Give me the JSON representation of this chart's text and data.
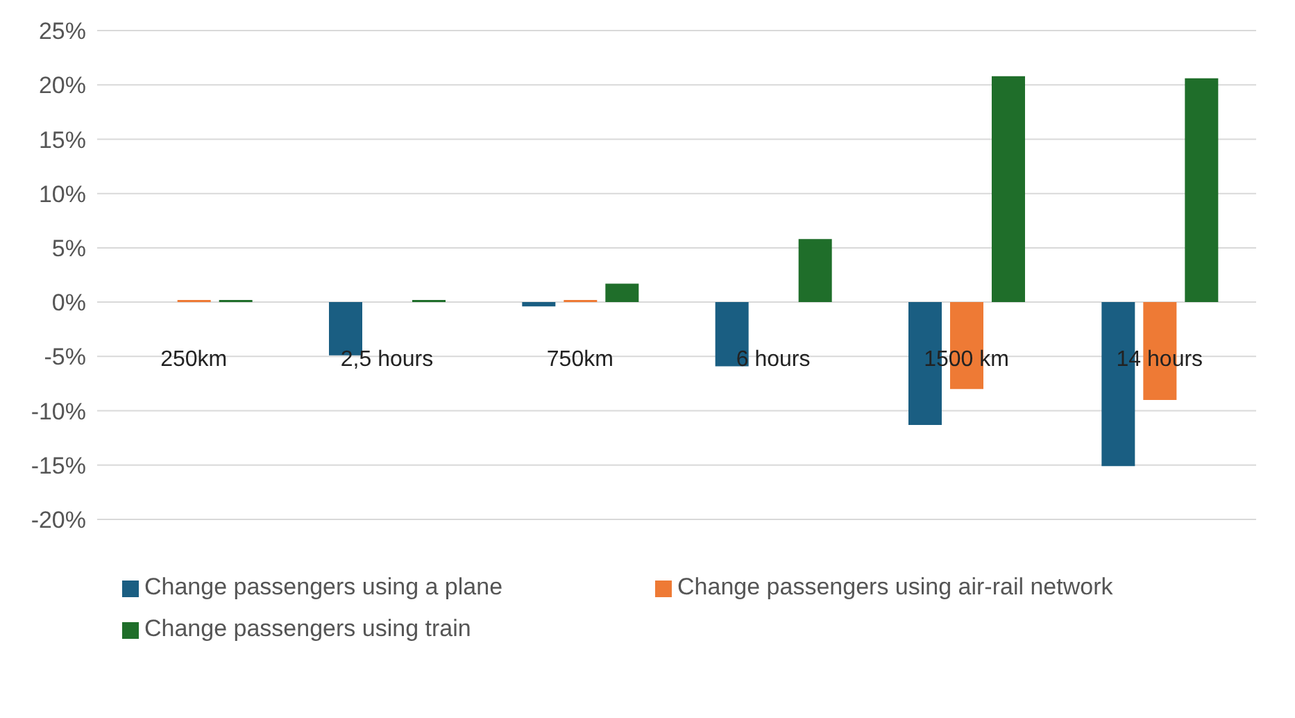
{
  "chart_data": {
    "type": "bar",
    "categories": [
      "250km",
      "2,5 hours",
      "750km",
      "6 hours",
      "1500 km",
      "14 hours"
    ],
    "series": [
      {
        "name": "Change passengers using a plane",
        "color": "#1a5e82",
        "values": [
          0,
          -4.9,
          -0.4,
          -5.9,
          -11.3,
          -15.1
        ]
      },
      {
        "name": "Change passengers using air-rail network",
        "color": "#ee7a35",
        "values": [
          0.2,
          0,
          0.2,
          0,
          -8.0,
          -9.0
        ]
      },
      {
        "name": "Change passengers using train",
        "color": "#1f6e2a",
        "values": [
          0.2,
          0.2,
          1.7,
          5.8,
          20.8,
          20.6
        ]
      }
    ],
    "ylim": [
      -20,
      25
    ],
    "yticks": [
      {
        "value": -20,
        "label": "-20%"
      },
      {
        "value": -15,
        "label": "-15%"
      },
      {
        "value": -10,
        "label": "-10%"
      },
      {
        "value": -5,
        "label": "-5%"
      },
      {
        "value": 0,
        "label": "0%"
      },
      {
        "value": 5,
        "label": "5%"
      },
      {
        "value": 10,
        "label": "10%"
      },
      {
        "value": 15,
        "label": "15%"
      },
      {
        "value": 20,
        "label": "20%"
      },
      {
        "value": 25,
        "label": "25%"
      }
    ],
    "grid": "y",
    "legend": "bottom"
  }
}
